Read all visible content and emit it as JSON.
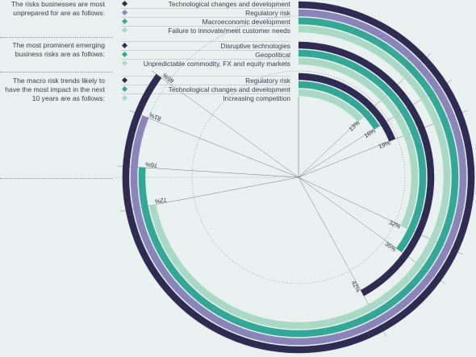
{
  "groups": [
    {
      "label": "The risks businesses are most unprepared for are as follows:",
      "items": [
        "Technological changes and development",
        "Regulatory risk",
        "Macroeconomic development",
        "Failure to innovate/meet customer needs"
      ]
    },
    {
      "label": "The most prominent emerging business risks are as follows:",
      "items": [
        "Disruptive technologies",
        "Geopolitical",
        "Unpredictable commodity, FX and equity markets"
      ]
    },
    {
      "label": "The macro risk trends likely to have the most impact in the next 10 years are as follows:",
      "items": [
        "Regulatory risk",
        "Technological changes and development",
        "Increasing competition"
      ]
    }
  ],
  "colors": {
    "navy": "#2f2b53",
    "purple": "#8b84b8",
    "teal": "#34a897",
    "mint": "#a9d9c4"
  },
  "chart_data": {
    "type": "radial bar",
    "series": [
      {
        "name": "Technological changes and development",
        "value": 85,
        "label": "85%",
        "color": "#2f2b53"
      },
      {
        "name": "Regulatory risk",
        "value": 81,
        "label": "81%",
        "color": "#8b84b8"
      },
      {
        "name": "Macroeconomic development",
        "value": 76,
        "label": "76%",
        "color": "#34a897"
      },
      {
        "name": "Failure to innovate/meet customer needs",
        "value": 72,
        "label": "72%",
        "color": "#a9d9c4"
      },
      {
        "name": "Disruptive technologies",
        "value": 42,
        "label": "42%",
        "color": "#2f2b53"
      },
      {
        "name": "Geopolitical",
        "value": 35,
        "label": "35%",
        "color": "#34a897"
      },
      {
        "name": "Unpredictable commodity, FX and equity markets",
        "value": 32,
        "label": "32%",
        "color": "#a9d9c4"
      },
      {
        "name": "Regulatory risk",
        "value": 19,
        "label": "19%",
        "color": "#2f2b53"
      },
      {
        "name": "Technological changes and development",
        "value": 16,
        "label": "16%",
        "color": "#34a897"
      },
      {
        "name": "Increasing competition",
        "value": 13,
        "label": "13%",
        "color": "#a9d9c4"
      }
    ]
  }
}
